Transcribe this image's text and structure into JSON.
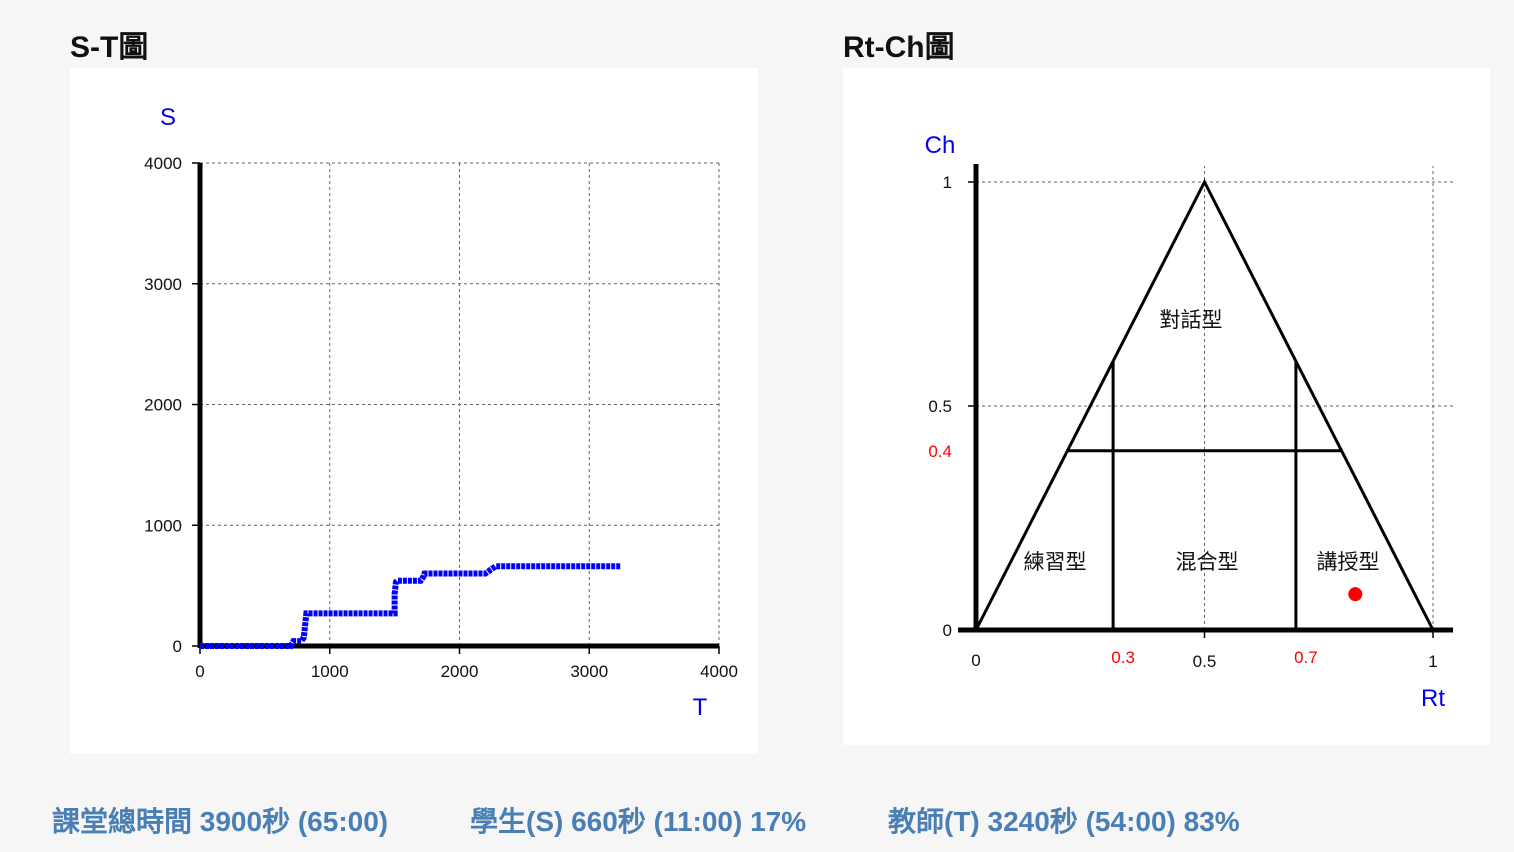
{
  "titles": {
    "st": "S-T圖",
    "rtch": "Rt-Ch圖"
  },
  "stats": {
    "total": "課堂總時間 3900秒 (65:00)",
    "student": "學生(S) 660秒 (11:00) 17%",
    "teacher": "教師(T) 3240秒 (54:00) 83%"
  },
  "chart_data": [
    {
      "type": "line",
      "title": "S-T圖",
      "xlabel": "T",
      "ylabel": "S",
      "xlim": [
        0,
        4000
      ],
      "ylim": [
        0,
        4000
      ],
      "xticks": [
        0,
        1000,
        2000,
        3000,
        4000
      ],
      "yticks": [
        0,
        1000,
        2000,
        3000,
        4000
      ],
      "grid": true,
      "color": "#0000ff",
      "points": [
        [
          0,
          0
        ],
        [
          700,
          0
        ],
        [
          720,
          40
        ],
        [
          780,
          40
        ],
        [
          800,
          70
        ],
        [
          810,
          170
        ],
        [
          820,
          270
        ],
        [
          1500,
          270
        ],
        [
          1500,
          430
        ],
        [
          1510,
          530
        ],
        [
          1520,
          540
        ],
        [
          1700,
          540
        ],
        [
          1720,
          570
        ],
        [
          1730,
          600
        ],
        [
          2200,
          600
        ],
        [
          2250,
          640
        ],
        [
          2280,
          660
        ],
        [
          3240,
          660
        ]
      ]
    },
    {
      "type": "scatter",
      "title": "Rt-Ch圖",
      "xlabel": "Rt",
      "ylabel": "Ch",
      "xlim": [
        0,
        1
      ],
      "ylim": [
        0,
        1
      ],
      "xticks": [
        "0",
        "0.3",
        "0.5",
        "0.7",
        "1"
      ],
      "yticks": [
        "0",
        "0.4",
        "0.5",
        "1"
      ],
      "highlight_tick_color": "#ff0000",
      "grid": true,
      "regions": [
        "對話型",
        "練習型",
        "混合型",
        "講授型"
      ],
      "point": {
        "rt": 0.83,
        "ch": 0.08,
        "color": "#ff0000"
      }
    }
  ]
}
